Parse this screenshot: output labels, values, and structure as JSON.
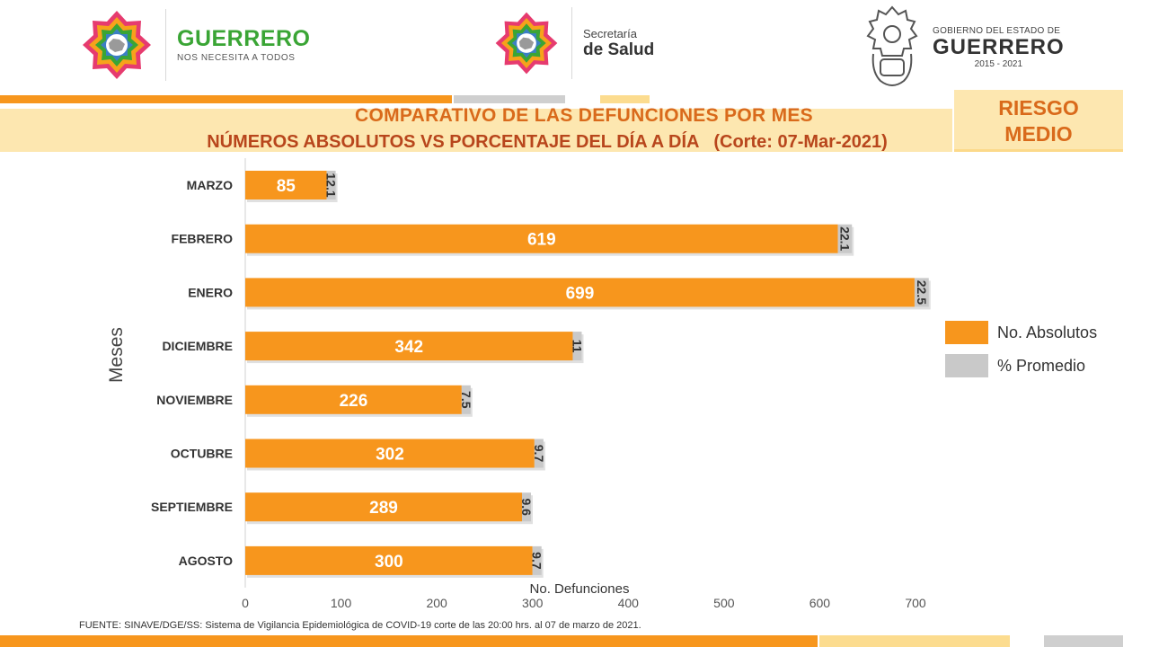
{
  "header": {
    "brand_title": "GUERRERO",
    "brand_sub": "NOS NECESITA A TODOS",
    "salud_small": "Secretaría",
    "salud_big": "de Salud",
    "gob_small": "GOBIERNO DEL ESTADO DE",
    "gob_big": "GUERRERO",
    "gob_years": "2015 - 2021"
  },
  "title": {
    "main": "COMPARATIVO DE LAS DEFUNCIONES POR MES",
    "sub": "NÚMEROS ABSOLUTOS VS PORCENTAJE DEL DÍA A DÍA   (Corte: 07-Mar-2021)"
  },
  "risk": {
    "line1": "RIESGO",
    "line2": "MEDIO"
  },
  "colors": {
    "orange": "#f7961d",
    "gray": "#c9c9c9",
    "title_orange": "#d96a1b",
    "stripe_orange": "#f7961d",
    "stripe_light": "#fcdc8f",
    "stripe_gray": "#cfcfcf"
  },
  "chart_data": {
    "type": "bar",
    "orientation": "horizontal",
    "stacked": true,
    "categories": [
      "MARZO",
      "FEBRERO",
      "ENERO",
      "DICIEMBRE",
      "NOVIEMBRE",
      "OCTUBRE",
      "SEPTIEMBRE",
      "AGOSTO"
    ],
    "series": [
      {
        "name": "No. Absolutos",
        "values": [
          85,
          619,
          699,
          342,
          226,
          302,
          289,
          300
        ]
      },
      {
        "name": "% Promedio",
        "values": [
          12.1,
          22.1,
          22.5,
          11,
          7.5,
          9.7,
          9.6,
          9.7
        ]
      }
    ],
    "pct_labels": [
      "12.1",
      "22.1",
      "22.5",
      "11",
      "7.5",
      "9.7",
      "9.6",
      "9.7"
    ],
    "xlabel": "No. Defunciones",
    "ylabel": "Meses",
    "xlim": [
      0,
      700
    ],
    "xticks": [
      0,
      100,
      200,
      300,
      400,
      500,
      600,
      700
    ],
    "grid": false,
    "legend_position": "right"
  },
  "source": "FUENTE: SINAVE/DGE/SS: Sistema de Vigilancia Epidemiológica de COVID-19 corte de las 20:00 hrs. al 07 de  marzo de 2021."
}
